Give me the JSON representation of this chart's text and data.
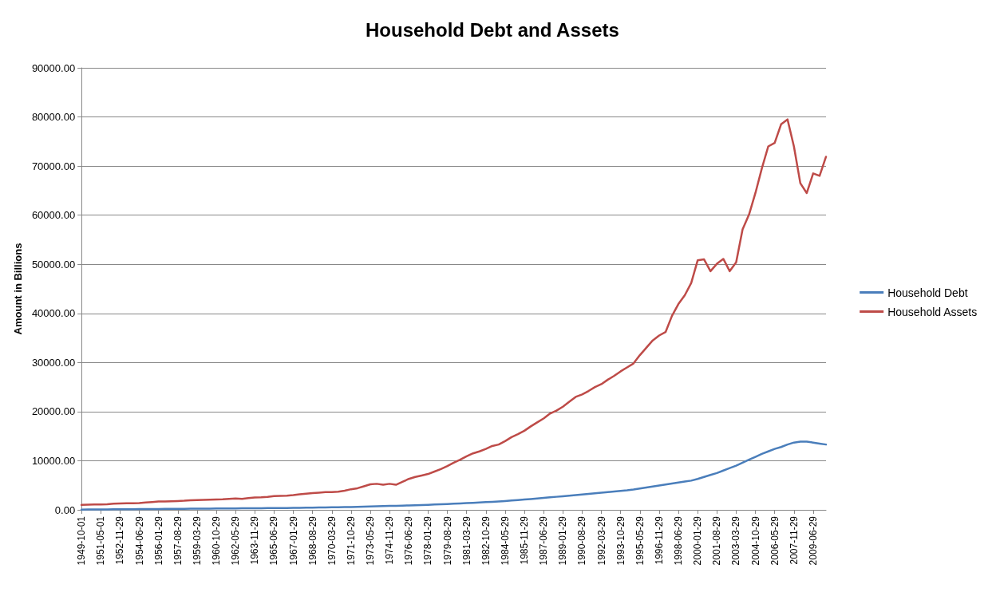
{
  "chart_data": {
    "type": "line",
    "title": "Household Debt and Assets",
    "ylabel": "Amount in Billions",
    "categories": [
      "1949-10-01",
      null,
      null,
      "1951-05-01",
      null,
      null,
      "1952-11-29",
      null,
      null,
      "1954-06-29",
      null,
      null,
      "1956-01-29",
      null,
      null,
      "1957-08-29",
      null,
      null,
      "1959-03-29",
      null,
      null,
      "1960-10-29",
      null,
      null,
      "1962-05-29",
      null,
      null,
      "1963-11-29",
      null,
      null,
      "1965-06-29",
      null,
      null,
      "1967-01-29",
      null,
      null,
      "1968-08-29",
      null,
      null,
      "1970-03-29",
      null,
      null,
      "1971-10-29",
      null,
      null,
      "1973-05-29",
      null,
      null,
      "1974-11-29",
      null,
      null,
      "1976-06-29",
      null,
      null,
      "1978-01-29",
      null,
      null,
      "1979-08-29",
      null,
      null,
      "1981-03-29",
      null,
      null,
      "1982-10-29",
      null,
      null,
      "1984-05-29",
      null,
      null,
      "1985-11-29",
      null,
      null,
      "1987-06-29",
      null,
      null,
      "1989-01-29",
      null,
      null,
      "1990-08-29",
      null,
      null,
      "1992-03-29",
      null,
      null,
      "1993-10-29",
      null,
      null,
      "1995-05-29",
      null,
      null,
      "1996-11-29",
      null,
      null,
      "1998-06-29",
      null,
      null,
      "2000-01-29",
      null,
      null,
      "2001-08-29",
      null,
      null,
      "2003-03-29",
      null,
      null,
      "2004-10-29",
      null,
      null,
      "2006-05-29",
      null,
      null,
      "2007-11-29",
      null,
      null,
      "2009-06-29",
      null,
      null
    ],
    "series": [
      {
        "name": "Household Debt",
        "color": "#4a7ebb",
        "values": [
          60,
          70,
          80,
          90,
          100,
          110,
          120,
          130,
          140,
          150,
          160,
          170,
          180,
          190,
          200,
          210,
          220,
          230,
          240,
          250,
          260,
          270,
          280,
          290,
          300,
          310,
          320,
          330,
          340,
          350,
          360,
          370,
          380,
          390,
          410,
          430,
          450,
          470,
          490,
          510,
          530,
          550,
          580,
          610,
          640,
          680,
          720,
          760,
          800,
          830,
          860,
          900,
          940,
          980,
          1030,
          1080,
          1130,
          1190,
          1250,
          1310,
          1380,
          1440,
          1500,
          1570,
          1640,
          1720,
          1800,
          1900,
          2000,
          2100,
          2200,
          2300,
          2420,
          2540,
          2660,
          2780,
          2900,
          3020,
          3140,
          3260,
          3380,
          3500,
          3620,
          3740,
          3850,
          3980,
          4150,
          4350,
          4550,
          4750,
          4950,
          5150,
          5350,
          5550,
          5750,
          5950,
          6300,
          6700,
          7100,
          7500,
          8000,
          8500,
          9000,
          9600,
          10200,
          10800,
          11400,
          11900,
          12400,
          12800,
          13300,
          13700,
          13900,
          13900,
          13700,
          13500,
          13300
        ]
      },
      {
        "name": "Household Assets",
        "color": "#be4b48",
        "values": [
          1000,
          1050,
          1080,
          1100,
          1150,
          1250,
          1300,
          1320,
          1350,
          1400,
          1500,
          1600,
          1700,
          1720,
          1750,
          1800,
          1850,
          1950,
          2000,
          2030,
          2060,
          2100,
          2150,
          2250,
          2300,
          2250,
          2400,
          2500,
          2550,
          2650,
          2800,
          2850,
          2900,
          3000,
          3150,
          3300,
          3400,
          3500,
          3600,
          3600,
          3700,
          3900,
          4200,
          4400,
          4800,
          5200,
          5300,
          5100,
          5300,
          5100,
          5700,
          6300,
          6700,
          7000,
          7300,
          7800,
          8300,
          8900,
          9600,
          10200,
          10900,
          11500,
          11900,
          12400,
          13000,
          13300,
          14000,
          14800,
          15400,
          16100,
          17000,
          17800,
          18600,
          19600,
          20200,
          21000,
          22000,
          23000,
          23500,
          24200,
          25000,
          25600,
          26500,
          27300,
          28200,
          29000,
          29800,
          31500,
          33000,
          34500,
          35500,
          36200,
          39500,
          41900,
          43700,
          46200,
          50800,
          51000,
          48600,
          50100,
          51100,
          48600,
          50400,
          57100,
          60100,
          64500,
          69500,
          74000,
          74700,
          78500,
          79500,
          74000,
          66500,
          64500,
          68500,
          68000,
          71900
        ]
      }
    ],
    "ylim": [
      0,
      90000
    ],
    "yticks": [
      {
        "value": 0,
        "label": "0.00"
      },
      {
        "value": 10000,
        "label": "10000.00"
      },
      {
        "value": 20000,
        "label": "20000.00"
      },
      {
        "value": 30000,
        "label": "30000.00"
      },
      {
        "value": 40000,
        "label": "40000.00"
      },
      {
        "value": 50000,
        "label": "50000.00"
      },
      {
        "value": 60000,
        "label": "60000.00"
      },
      {
        "value": 70000,
        "label": "70000.00"
      },
      {
        "value": 80000,
        "label": "80000.00"
      },
      {
        "value": 90000,
        "label": "90000.00"
      }
    ],
    "grid": "y",
    "legend": "right",
    "marker": "none",
    "line_style": "solid"
  }
}
